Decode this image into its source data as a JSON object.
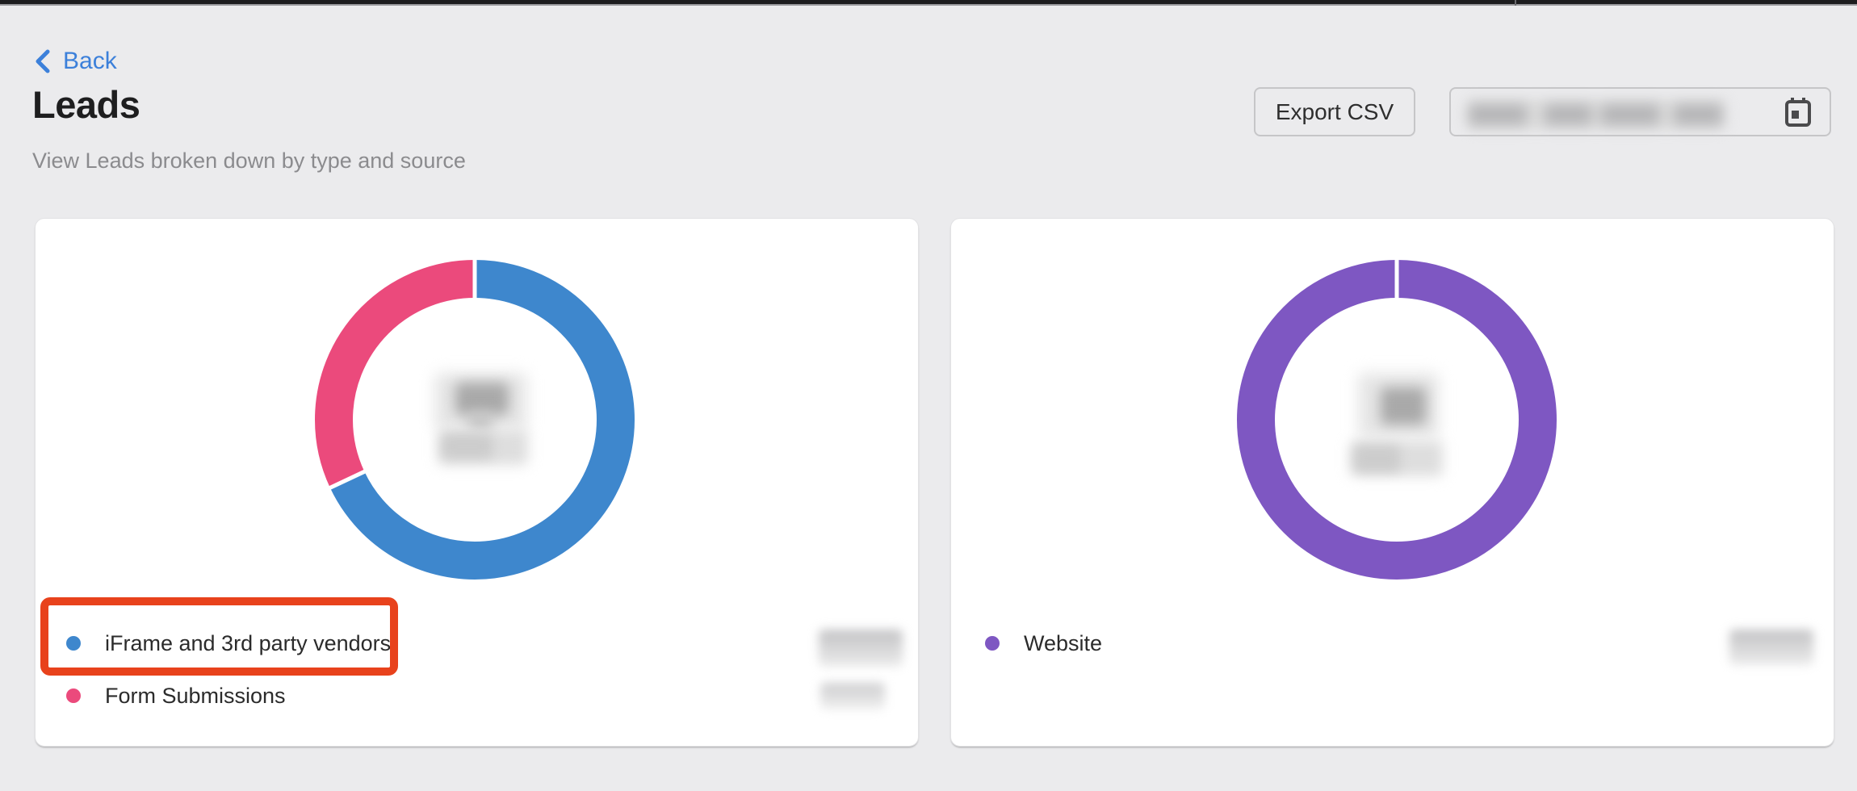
{
  "page": {
    "back_label": "Back",
    "title": "Leads",
    "subtitle": "View Leads broken down by type and source"
  },
  "toolbar": {
    "export_label": "Export CSV",
    "date_range": {
      "value": "",
      "redacted": true,
      "calendar_icon": "calendar-icon"
    }
  },
  "colors": {
    "background": "#ebebed",
    "card": "#ffffff",
    "link_blue": "#3c80da",
    "chart_blue": "#3e87cd",
    "chart_pink": "#eb4a7c",
    "chart_purple": "#7e57c2",
    "annotation_red": "#e8421c"
  },
  "annotation": {
    "type": "highlight-box",
    "color": "#e8421c",
    "target": "iFrame and 3rd party vendors legend item"
  },
  "chart_data": [
    {
      "type": "pie",
      "variant": "donut",
      "legend_position": "bottom-left",
      "center_label_redacted": true,
      "values_redacted": true,
      "series": [
        {
          "label": "iFrame and 3rd party vendors",
          "color": "#3e87cd",
          "percent": 68
        },
        {
          "label": "Form Submissions",
          "color": "#eb4a7c",
          "percent": 32
        }
      ]
    },
    {
      "type": "pie",
      "variant": "donut",
      "legend_position": "bottom-left",
      "center_label_redacted": true,
      "values_redacted": true,
      "series": [
        {
          "label": "Website",
          "color": "#7e57c2",
          "percent": 100
        }
      ]
    }
  ]
}
